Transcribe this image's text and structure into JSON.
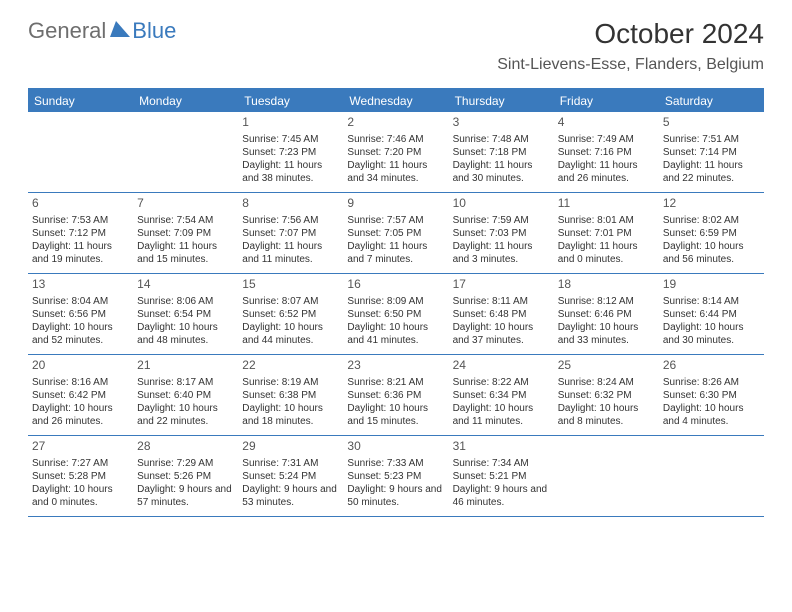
{
  "logo": {
    "text1": "General",
    "text2": "Blue"
  },
  "title": "October 2024",
  "location": "Sint-Lievens-Esse, Flanders, Belgium",
  "colors": {
    "accent": "#3a7abd",
    "text": "#333333",
    "muted": "#555555",
    "logoGray": "#6e6e6e",
    "background": "#ffffff"
  },
  "weekdays": [
    "Sunday",
    "Monday",
    "Tuesday",
    "Wednesday",
    "Thursday",
    "Friday",
    "Saturday"
  ],
  "weeks": [
    [
      {
        "num": "",
        "sunrise": "",
        "sunset": "",
        "daylight": ""
      },
      {
        "num": "",
        "sunrise": "",
        "sunset": "",
        "daylight": ""
      },
      {
        "num": "1",
        "sunrise": "Sunrise: 7:45 AM",
        "sunset": "Sunset: 7:23 PM",
        "daylight": "Daylight: 11 hours and 38 minutes."
      },
      {
        "num": "2",
        "sunrise": "Sunrise: 7:46 AM",
        "sunset": "Sunset: 7:20 PM",
        "daylight": "Daylight: 11 hours and 34 minutes."
      },
      {
        "num": "3",
        "sunrise": "Sunrise: 7:48 AM",
        "sunset": "Sunset: 7:18 PM",
        "daylight": "Daylight: 11 hours and 30 minutes."
      },
      {
        "num": "4",
        "sunrise": "Sunrise: 7:49 AM",
        "sunset": "Sunset: 7:16 PM",
        "daylight": "Daylight: 11 hours and 26 minutes."
      },
      {
        "num": "5",
        "sunrise": "Sunrise: 7:51 AM",
        "sunset": "Sunset: 7:14 PM",
        "daylight": "Daylight: 11 hours and 22 minutes."
      }
    ],
    [
      {
        "num": "6",
        "sunrise": "Sunrise: 7:53 AM",
        "sunset": "Sunset: 7:12 PM",
        "daylight": "Daylight: 11 hours and 19 minutes."
      },
      {
        "num": "7",
        "sunrise": "Sunrise: 7:54 AM",
        "sunset": "Sunset: 7:09 PM",
        "daylight": "Daylight: 11 hours and 15 minutes."
      },
      {
        "num": "8",
        "sunrise": "Sunrise: 7:56 AM",
        "sunset": "Sunset: 7:07 PM",
        "daylight": "Daylight: 11 hours and 11 minutes."
      },
      {
        "num": "9",
        "sunrise": "Sunrise: 7:57 AM",
        "sunset": "Sunset: 7:05 PM",
        "daylight": "Daylight: 11 hours and 7 minutes."
      },
      {
        "num": "10",
        "sunrise": "Sunrise: 7:59 AM",
        "sunset": "Sunset: 7:03 PM",
        "daylight": "Daylight: 11 hours and 3 minutes."
      },
      {
        "num": "11",
        "sunrise": "Sunrise: 8:01 AM",
        "sunset": "Sunset: 7:01 PM",
        "daylight": "Daylight: 11 hours and 0 minutes."
      },
      {
        "num": "12",
        "sunrise": "Sunrise: 8:02 AM",
        "sunset": "Sunset: 6:59 PM",
        "daylight": "Daylight: 10 hours and 56 minutes."
      }
    ],
    [
      {
        "num": "13",
        "sunrise": "Sunrise: 8:04 AM",
        "sunset": "Sunset: 6:56 PM",
        "daylight": "Daylight: 10 hours and 52 minutes."
      },
      {
        "num": "14",
        "sunrise": "Sunrise: 8:06 AM",
        "sunset": "Sunset: 6:54 PM",
        "daylight": "Daylight: 10 hours and 48 minutes."
      },
      {
        "num": "15",
        "sunrise": "Sunrise: 8:07 AM",
        "sunset": "Sunset: 6:52 PM",
        "daylight": "Daylight: 10 hours and 44 minutes."
      },
      {
        "num": "16",
        "sunrise": "Sunrise: 8:09 AM",
        "sunset": "Sunset: 6:50 PM",
        "daylight": "Daylight: 10 hours and 41 minutes."
      },
      {
        "num": "17",
        "sunrise": "Sunrise: 8:11 AM",
        "sunset": "Sunset: 6:48 PM",
        "daylight": "Daylight: 10 hours and 37 minutes."
      },
      {
        "num": "18",
        "sunrise": "Sunrise: 8:12 AM",
        "sunset": "Sunset: 6:46 PM",
        "daylight": "Daylight: 10 hours and 33 minutes."
      },
      {
        "num": "19",
        "sunrise": "Sunrise: 8:14 AM",
        "sunset": "Sunset: 6:44 PM",
        "daylight": "Daylight: 10 hours and 30 minutes."
      }
    ],
    [
      {
        "num": "20",
        "sunrise": "Sunrise: 8:16 AM",
        "sunset": "Sunset: 6:42 PM",
        "daylight": "Daylight: 10 hours and 26 minutes."
      },
      {
        "num": "21",
        "sunrise": "Sunrise: 8:17 AM",
        "sunset": "Sunset: 6:40 PM",
        "daylight": "Daylight: 10 hours and 22 minutes."
      },
      {
        "num": "22",
        "sunrise": "Sunrise: 8:19 AM",
        "sunset": "Sunset: 6:38 PM",
        "daylight": "Daylight: 10 hours and 18 minutes."
      },
      {
        "num": "23",
        "sunrise": "Sunrise: 8:21 AM",
        "sunset": "Sunset: 6:36 PM",
        "daylight": "Daylight: 10 hours and 15 minutes."
      },
      {
        "num": "24",
        "sunrise": "Sunrise: 8:22 AM",
        "sunset": "Sunset: 6:34 PM",
        "daylight": "Daylight: 10 hours and 11 minutes."
      },
      {
        "num": "25",
        "sunrise": "Sunrise: 8:24 AM",
        "sunset": "Sunset: 6:32 PM",
        "daylight": "Daylight: 10 hours and 8 minutes."
      },
      {
        "num": "26",
        "sunrise": "Sunrise: 8:26 AM",
        "sunset": "Sunset: 6:30 PM",
        "daylight": "Daylight: 10 hours and 4 minutes."
      }
    ],
    [
      {
        "num": "27",
        "sunrise": "Sunrise: 7:27 AM",
        "sunset": "Sunset: 5:28 PM",
        "daylight": "Daylight: 10 hours and 0 minutes."
      },
      {
        "num": "28",
        "sunrise": "Sunrise: 7:29 AM",
        "sunset": "Sunset: 5:26 PM",
        "daylight": "Daylight: 9 hours and 57 minutes."
      },
      {
        "num": "29",
        "sunrise": "Sunrise: 7:31 AM",
        "sunset": "Sunset: 5:24 PM",
        "daylight": "Daylight: 9 hours and 53 minutes."
      },
      {
        "num": "30",
        "sunrise": "Sunrise: 7:33 AM",
        "sunset": "Sunset: 5:23 PM",
        "daylight": "Daylight: 9 hours and 50 minutes."
      },
      {
        "num": "31",
        "sunrise": "Sunrise: 7:34 AM",
        "sunset": "Sunset: 5:21 PM",
        "daylight": "Daylight: 9 hours and 46 minutes."
      },
      {
        "num": "",
        "sunrise": "",
        "sunset": "",
        "daylight": ""
      },
      {
        "num": "",
        "sunrise": "",
        "sunset": "",
        "daylight": ""
      }
    ]
  ]
}
